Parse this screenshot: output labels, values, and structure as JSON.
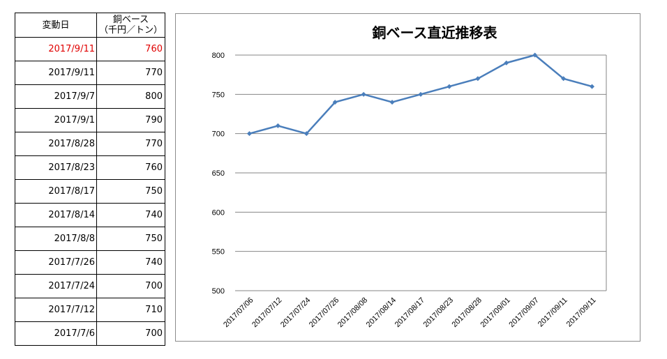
{
  "table": {
    "header_date": "変動日",
    "header_value_line1": "銅ベース",
    "header_value_line2": "（千円／トン）",
    "rows": [
      {
        "date": "2017/9/11",
        "value": "760",
        "highlight": true
      },
      {
        "date": "2017/9/11",
        "value": "770"
      },
      {
        "date": "2017/9/7",
        "value": "800"
      },
      {
        "date": "2017/9/1",
        "value": "790"
      },
      {
        "date": "2017/8/28",
        "value": "770"
      },
      {
        "date": "2017/8/23",
        "value": "760"
      },
      {
        "date": "2017/8/17",
        "value": "750"
      },
      {
        "date": "2017/8/14",
        "value": "740"
      },
      {
        "date": "2017/8/8",
        "value": "750"
      },
      {
        "date": "2017/7/26",
        "value": "740"
      },
      {
        "date": "2017/7/24",
        "value": "700"
      },
      {
        "date": "2017/7/12",
        "value": "710"
      },
      {
        "date": "2017/7/6",
        "value": "700"
      }
    ],
    "highlight_color": "#e00000"
  },
  "chart_data": {
    "type": "line",
    "title": "銅ベース直近推移表",
    "xlabel": "",
    "ylabel": "",
    "categories": [
      "2017/07/06",
      "2017/07/12",
      "2017/07/24",
      "2017/07/26",
      "2017/08/08",
      "2017/08/14",
      "2017/08/17",
      "2017/08/23",
      "2017/08/28",
      "2017/09/01",
      "2017/09/07",
      "2017/09/11",
      "2017/09/11"
    ],
    "series": [
      {
        "values": [
          700,
          710,
          700,
          740,
          750,
          740,
          750,
          760,
          770,
          790,
          800,
          770,
          760
        ],
        "color": "#4a7ebb"
      }
    ],
    "ylim": [
      500,
      800
    ],
    "yticks": [
      500,
      550,
      600,
      650,
      700,
      750,
      800
    ],
    "grid": true,
    "legend": "none",
    "marker": "diamond"
  }
}
